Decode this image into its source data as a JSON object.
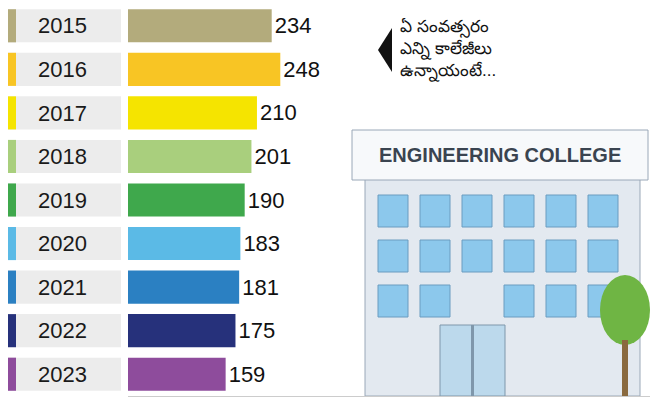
{
  "chart_data": {
    "type": "bar",
    "orientation": "horizontal",
    "categories": [
      "2015",
      "2016",
      "2017",
      "2018",
      "2019",
      "2020",
      "2021",
      "2022",
      "2023"
    ],
    "values": [
      234,
      248,
      210,
      201,
      190,
      183,
      181,
      175,
      159
    ],
    "colors": [
      "#b3ab7c",
      "#f8c524",
      "#f5e400",
      "#a9cf7d",
      "#3fa84c",
      "#5bbae6",
      "#2b80c2",
      "#26317b",
      "#8e4c9c"
    ],
    "xlim": [
      0,
      850
    ],
    "xticks": [],
    "data_labels": true,
    "tick_labels": "y",
    "grid": false,
    "annotations": [
      "ఏ సంవత్సరం ఎన్ని కాలేజీలు ఉన్నాయంటే...",
      "ENGINEERING COLLEGE"
    ]
  }
}
